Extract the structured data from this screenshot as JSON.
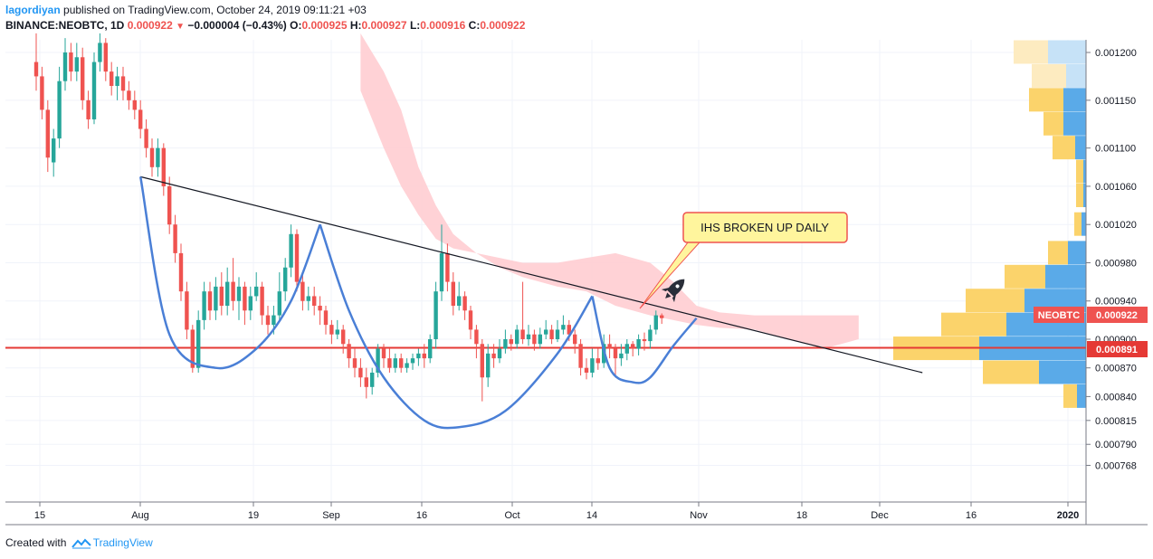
{
  "header": {
    "user": "lagordiyan",
    "published_text": "published on TradingView.com, October 24, 2019 09:11:21 +03",
    "symbol": "BINANCE:NEOBTC, 1D",
    "last": "0.000922",
    "change": "−0.000004 (−0.43%)",
    "o_label": "O:",
    "o": "0.000925",
    "h_label": "H:",
    "h": "0.000927",
    "l_label": "L:",
    "l": "0.000916",
    "c_label": "C:",
    "c": "0.000922"
  },
  "footer": {
    "created_with": "Created with",
    "brand": "TradingView"
  },
  "colors": {
    "up": "#26a69a",
    "down": "#ef5350",
    "cloud": "#ffcdd2",
    "trend": "#131722",
    "pattern": "#4a7fd6",
    "hline": "#e53935",
    "vp_yellow": "#fbd36b",
    "vp_blue": "#5aaae8",
    "callout_bg": "#fff59d",
    "callout_border": "#ef5350"
  },
  "chart_data": {
    "type": "candlestick",
    "ylim": [
      0.00076,
      0.00122
    ],
    "y_ticks": [
      "0.001200",
      "0.001150",
      "0.001100",
      "0.001060",
      "0.001020",
      "0.000980",
      "0.000940",
      "0.000900",
      "0.000870",
      "0.000840",
      "0.000815",
      "0.000790",
      "0.000768"
    ],
    "x_ticks": [
      "15",
      "Aug",
      "19",
      "Sep",
      "16",
      "Oct",
      "14",
      "Nov",
      "18",
      "Dec",
      "16",
      "2020"
    ],
    "price_label": "NEOBTC",
    "price_value": "0.000922",
    "hline_value": "0.000891",
    "callout": "IHS BROKEN UP DAILY",
    "candles": [
      [
        0.00119,
        0.001175,
        0.00122,
        0.00116
      ],
      [
        0.001175,
        0.00114,
        0.001185,
        0.00113
      ],
      [
        0.00114,
        0.00109,
        0.00115,
        0.001075
      ],
      [
        0.001085,
        0.00111,
        0.00112,
        0.00107
      ],
      [
        0.00111,
        0.00117,
        0.001185,
        0.0011
      ],
      [
        0.00117,
        0.0012,
        0.001215,
        0.00116
      ],
      [
        0.0012,
        0.00118,
        0.00121,
        0.00117
      ],
      [
        0.00118,
        0.001195,
        0.00121,
        0.00117
      ],
      [
        0.001195,
        0.00115,
        0.001205,
        0.00114
      ],
      [
        0.00115,
        0.00113,
        0.00116,
        0.00112
      ],
      [
        0.00113,
        0.00119,
        0.0012,
        0.001125
      ],
      [
        0.00119,
        0.00121,
        0.00122,
        0.00118
      ],
      [
        0.00121,
        0.00118,
        0.001215,
        0.00117
      ],
      [
        0.00118,
        0.001165,
        0.00119,
        0.001155
      ],
      [
        0.001165,
        0.001175,
        0.001185,
        0.00115
      ],
      [
        0.001175,
        0.00116,
        0.001185,
        0.00115
      ],
      [
        0.00116,
        0.00115,
        0.00117,
        0.00114
      ],
      [
        0.00115,
        0.00114,
        0.00116,
        0.00113
      ],
      [
        0.00114,
        0.00112,
        0.00115,
        0.00111
      ],
      [
        0.00112,
        0.0011,
        0.00113,
        0.00109
      ],
      [
        0.0011,
        0.00108,
        0.00111,
        0.00107
      ],
      [
        0.00108,
        0.0011,
        0.00111,
        0.00107
      ],
      [
        0.0011,
        0.00106,
        0.001105,
        0.00105
      ],
      [
        0.00106,
        0.00102,
        0.00107,
        0.00101
      ],
      [
        0.00102,
        0.00099,
        0.00103,
        0.00098
      ],
      [
        0.00099,
        0.00095,
        0.001,
        0.00094
      ],
      [
        0.00095,
        0.00091,
        0.00096,
        0.0009
      ],
      [
        0.00091,
        0.00087,
        0.000915,
        0.000865
      ],
      [
        0.00087,
        0.00092,
        0.00093,
        0.000865
      ],
      [
        0.00092,
        0.00095,
        0.00096,
        0.00091
      ],
      [
        0.00095,
        0.00093,
        0.00096,
        0.00092
      ],
      [
        0.00093,
        0.000955,
        0.000965,
        0.00092
      ],
      [
        0.000955,
        0.000935,
        0.00097,
        0.000925
      ],
      [
        0.000935,
        0.00096,
        0.000975,
        0.000925
      ],
      [
        0.00096,
        0.00094,
        0.000985,
        0.00093
      ],
      [
        0.00094,
        0.000955,
        0.000965,
        0.00092
      ],
      [
        0.000955,
        0.00093,
        0.00096,
        0.000915
      ],
      [
        0.00093,
        0.000945,
        0.000955,
        0.00092
      ],
      [
        0.000945,
        0.000955,
        0.00097,
        0.00094
      ],
      [
        0.000955,
        0.000925,
        0.00096,
        0.000915
      ],
      [
        0.000925,
        0.000915,
        0.000935,
        0.000905
      ],
      [
        0.000915,
        0.000925,
        0.000935,
        0.000905
      ],
      [
        0.000925,
        0.00095,
        0.00097,
        0.00092
      ],
      [
        0.00095,
        0.000975,
        0.000985,
        0.00094
      ],
      [
        0.000975,
        0.00101,
        0.00102,
        0.000965
      ],
      [
        0.00101,
        0.00096,
        0.001015,
        0.00095
      ],
      [
        0.00096,
        0.00094,
        0.00097,
        0.00093
      ],
      [
        0.00094,
        0.000945,
        0.000955,
        0.00093
      ],
      [
        0.000945,
        0.000935,
        0.000955,
        0.000925
      ],
      [
        0.000935,
        0.00093,
        0.000945,
        0.000915
      ],
      [
        0.00093,
        0.000915,
        0.000935,
        0.000905
      ],
      [
        0.000915,
        0.000905,
        0.00092,
        0.000895
      ],
      [
        0.000905,
        0.00091,
        0.00092,
        0.0009
      ],
      [
        0.00091,
        0.000895,
        0.000915,
        0.000885
      ],
      [
        0.000895,
        0.00088,
        0.0009,
        0.00087
      ],
      [
        0.00088,
        0.00087,
        0.00089,
        0.00086
      ],
      [
        0.00087,
        0.00086,
        0.00088,
        0.00085
      ],
      [
        0.00086,
        0.00085,
        0.00087,
        0.000838
      ],
      [
        0.00085,
        0.000865,
        0.00087,
        0.000842
      ],
      [
        0.000865,
        0.00089,
        0.000895,
        0.00086
      ],
      [
        0.00089,
        0.00088,
        0.000895,
        0.00087
      ],
      [
        0.00088,
        0.00087,
        0.00089,
        0.000865
      ],
      [
        0.00087,
        0.00088,
        0.000885,
        0.000865
      ],
      [
        0.00088,
        0.00087,
        0.000885,
        0.000865
      ],
      [
        0.00087,
        0.000875,
        0.00088,
        0.000865
      ],
      [
        0.000875,
        0.00088,
        0.000885,
        0.000868
      ],
      [
        0.00088,
        0.000885,
        0.00089,
        0.000872
      ],
      [
        0.000885,
        0.00088,
        0.000895,
        0.00087
      ],
      [
        0.00088,
        0.0009,
        0.000905,
        0.000875
      ],
      [
        0.0009,
        0.00095,
        0.00096,
        0.00089
      ],
      [
        0.00095,
        0.00099,
        0.00102,
        0.00094
      ],
      [
        0.00099,
        0.00096,
        0.001,
        0.00095
      ],
      [
        0.00096,
        0.000935,
        0.00097,
        0.000925
      ],
      [
        0.000935,
        0.000945,
        0.00096,
        0.00093
      ],
      [
        0.000945,
        0.00093,
        0.00095,
        0.00092
      ],
      [
        0.00093,
        0.00091,
        0.000935,
        0.0009
      ],
      [
        0.00091,
        0.000895,
        0.000915,
        0.00088
      ],
      [
        0.000895,
        0.00086,
        0.0009,
        0.000835
      ],
      [
        0.00086,
        0.000885,
        0.000895,
        0.00085
      ],
      [
        0.000885,
        0.00088,
        0.000895,
        0.00087
      ],
      [
        0.00088,
        0.00089,
        0.0009,
        0.000875
      ],
      [
        0.00089,
        0.0009,
        0.00091,
        0.000885
      ],
      [
        0.0009,
        0.000895,
        0.000905,
        0.000888
      ],
      [
        0.000895,
        0.00091,
        0.000915,
        0.00089
      ],
      [
        0.00091,
        0.0009,
        0.00096,
        0.000895
      ],
      [
        0.0009,
        0.000905,
        0.000915,
        0.000893
      ],
      [
        0.000905,
        0.000895,
        0.00091,
        0.000888
      ],
      [
        0.000895,
        0.000905,
        0.000912,
        0.00089
      ],
      [
        0.000905,
        0.00091,
        0.00092,
        0.0009
      ],
      [
        0.00091,
        0.0009,
        0.000915,
        0.000895
      ],
      [
        0.0009,
        0.00091,
        0.00092,
        0.000897
      ],
      [
        0.00091,
        0.000915,
        0.000925,
        0.000905
      ],
      [
        0.000915,
        0.000905,
        0.00092,
        0.000898
      ],
      [
        0.000905,
        0.000895,
        0.00091,
        0.000885
      ],
      [
        0.000895,
        0.00087,
        0.0009,
        0.000862
      ],
      [
        0.00087,
        0.000865,
        0.00088,
        0.000858
      ],
      [
        0.000865,
        0.00088,
        0.00089,
        0.00086
      ],
      [
        0.00088,
        0.000875,
        0.00089,
        0.000868
      ],
      [
        0.000875,
        0.000895,
        0.000905,
        0.00087
      ],
      [
        0.000895,
        0.00089,
        0.000905,
        0.00088
      ],
      [
        0.00089,
        0.00088,
        0.000895,
        0.00086
      ],
      [
        0.00088,
        0.000885,
        0.000895,
        0.000872
      ],
      [
        0.000885,
        0.000895,
        0.0009,
        0.000878
      ],
      [
        0.000895,
        0.00089,
        0.000898,
        0.000882
      ],
      [
        0.00089,
        0.0009,
        0.000905,
        0.000883
      ],
      [
        0.0009,
        0.000898,
        0.000907,
        0.000888
      ],
      [
        0.000898,
        0.00091,
        0.000915,
        0.00089
      ],
      [
        0.00091,
        0.000925,
        0.00093,
        0.000905
      ],
      [
        0.000925,
        0.000922,
        0.000927,
        0.000916
      ]
    ],
    "cloud_upper": [
      [
        56,
        0.00122
      ],
      [
        60,
        0.00118
      ],
      [
        63,
        0.00114
      ],
      [
        66,
        0.00108
      ],
      [
        69,
        0.00104
      ],
      [
        72,
        0.00101
      ],
      [
        76,
        0.00099
      ],
      [
        80,
        0.000985
      ],
      [
        84,
        0.00098
      ],
      [
        90,
        0.00098
      ],
      [
        95,
        0.000985
      ],
      [
        100,
        0.00099
      ],
      [
        106,
        0.00098
      ],
      [
        110,
        0.00096
      ],
      [
        114,
        0.000935
      ],
      [
        118,
        0.000928
      ],
      [
        124,
        0.000925
      ],
      [
        130,
        0.000925
      ],
      [
        136,
        0.000925
      ],
      [
        142,
        0.000925
      ]
    ],
    "cloud_lower": [
      [
        142,
        0.0009
      ],
      [
        136,
        0.00089
      ],
      [
        130,
        0.0009
      ],
      [
        124,
        0.00091
      ],
      [
        118,
        0.000912
      ],
      [
        114,
        0.000915
      ],
      [
        110,
        0.00092
      ],
      [
        106,
        0.000925
      ],
      [
        100,
        0.000935
      ],
      [
        95,
        0.00095
      ],
      [
        90,
        0.000955
      ],
      [
        84,
        0.000965
      ],
      [
        80,
        0.000975
      ],
      [
        76,
        0.00099
      ],
      [
        72,
        0.000995
      ],
      [
        69,
        0.001005
      ],
      [
        66,
        0.00103
      ],
      [
        63,
        0.00106
      ],
      [
        60,
        0.0011
      ],
      [
        56,
        0.00116
      ]
    ],
    "trendline": [
      [
        18,
        0.00107
      ],
      [
        153,
        0.000865
      ]
    ],
    "pattern_curves": [
      [
        [
          18,
          0.00107
        ],
        [
          23,
          0.000905
        ],
        [
          31,
          0.00087
        ],
        [
          38,
          0.00089
        ],
        [
          44,
          0.00094
        ],
        [
          49,
          0.00102
        ]
      ],
      [
        [
          49,
          0.00102
        ],
        [
          54,
          0.00093
        ],
        [
          60,
          0.00086
        ],
        [
          67,
          0.000815
        ],
        [
          73,
          0.000808
        ],
        [
          81,
          0.000825
        ],
        [
          90,
          0.000885
        ],
        [
          96,
          0.000945
        ]
      ],
      [
        [
          96,
          0.000945
        ],
        [
          99,
          0.00087
        ],
        [
          103,
          0.000855
        ],
        [
          106,
          0.00086
        ],
        [
          110,
          0.000893
        ],
        [
          114,
          0.000922
        ]
      ]
    ],
    "volume_profile": [
      {
        "price": 0.0012,
        "yellow": 38,
        "blue": 42,
        "light": true
      },
      {
        "price": 0.001175,
        "yellow": 38,
        "blue": 22,
        "light": true
      },
      {
        "price": 0.00115,
        "yellow": 38,
        "blue": 25,
        "light": false
      },
      {
        "price": 0.001125,
        "yellow": 22,
        "blue": 25,
        "light": false
      },
      {
        "price": 0.0011,
        "yellow": 25,
        "blue": 12,
        "light": false
      },
      {
        "price": 0.001075,
        "yellow": 8,
        "blue": 3,
        "light": false
      },
      {
        "price": 0.00105,
        "yellow": 8,
        "blue": 3,
        "light": false
      },
      {
        "price": 0.00102,
        "yellow": 8,
        "blue": 5,
        "light": false
      },
      {
        "price": 0.00099,
        "yellow": 22,
        "blue": 20,
        "light": false
      },
      {
        "price": 0.000965,
        "yellow": 45,
        "blue": 45,
        "light": false
      },
      {
        "price": 0.00094,
        "yellow": 65,
        "blue": 68,
        "light": false
      },
      {
        "price": 0.000915,
        "yellow": 72,
        "blue": 88,
        "light": false
      },
      {
        "price": 0.00089,
        "yellow": 95,
        "blue": 118,
        "light": false
      },
      {
        "price": 0.000865,
        "yellow": 62,
        "blue": 52,
        "light": false
      },
      {
        "price": 0.00084,
        "yellow": 15,
        "blue": 10,
        "light": false
      }
    ]
  }
}
